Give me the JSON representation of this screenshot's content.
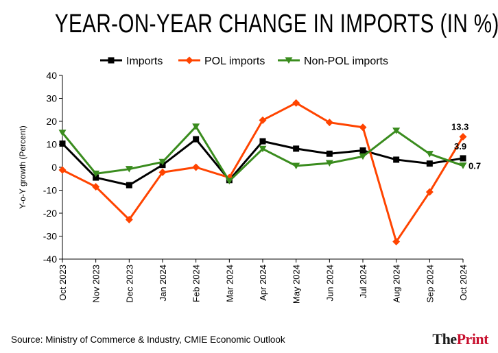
{
  "page": {
    "title": "YEAR-ON-YEAR CHANGE IN IMPORTS (IN %)",
    "source": "Source: Ministry of Commerce & Industry, CMIE Economic Outlook",
    "brand": {
      "the": "The",
      "print": "Print"
    }
  },
  "chart_data": {
    "type": "line",
    "title": "YEAR-ON-YEAR CHANGE IN IMPORTS (IN %)",
    "xlabel": "",
    "ylabel": "Y-o-Y growth (Percent)",
    "ylim": [
      -40,
      40
    ],
    "yticks": [
      -40,
      -30,
      -20,
      -10,
      0,
      10,
      20,
      30,
      40
    ],
    "grid": false,
    "legend_position": "top",
    "categories": [
      "Oct 2023",
      "Nov 2023",
      "Dec 2023",
      "Jan 2024",
      "Feb 2024",
      "Mar 2024",
      "Apr 2024",
      "May 2024",
      "Jun 2024",
      "Jul 2024",
      "Aug 2024",
      "Sep 2024",
      "Oct 2024"
    ],
    "series": [
      {
        "name": "Imports",
        "color": "#000000",
        "marker": "square",
        "values": [
          10.3,
          -4.5,
          -7.8,
          1.0,
          12.2,
          -5.6,
          11.3,
          8.1,
          5.9,
          7.3,
          3.3,
          1.6,
          3.9
        ]
      },
      {
        "name": "POL imports",
        "color": "#ff4400",
        "marker": "diamond",
        "values": [
          -1.2,
          -8.5,
          -22.8,
          -2.2,
          0.0,
          -4.5,
          20.5,
          28.0,
          19.5,
          17.4,
          -32.4,
          -10.8,
          13.3
        ]
      },
      {
        "name": "Non-POL imports",
        "color": "#3a8c1e",
        "marker": "triangle-down",
        "values": [
          15.0,
          -2.8,
          -0.8,
          2.3,
          17.7,
          -6.0,
          8.0,
          0.6,
          1.8,
          4.7,
          15.9,
          5.8,
          0.7
        ]
      }
    ],
    "annotations": [
      {
        "series": "POL imports",
        "category": "Oct 2024",
        "text": "13.3"
      },
      {
        "series": "Imports",
        "category": "Oct 2024",
        "text": "3.9"
      },
      {
        "series": "Non-POL imports",
        "category": "Oct 2024",
        "text": "0.7"
      }
    ]
  }
}
